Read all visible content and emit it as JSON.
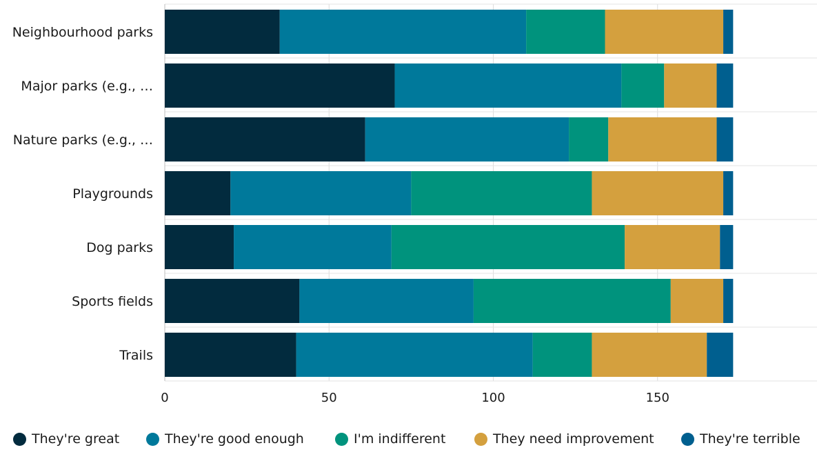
{
  "chart_data": {
    "type": "bar",
    "orientation": "horizontal",
    "stacked": true,
    "categories": [
      "Neighbourhood parks",
      "Major parks (e.g., …",
      "Nature parks (e.g., …",
      "Playgrounds",
      "Dog parks",
      "Sports fields",
      "Trails"
    ],
    "series": [
      {
        "name": "They're great",
        "color": "#022b3e",
        "values": [
          35,
          70,
          61,
          20,
          21,
          41,
          40
        ]
      },
      {
        "name": "They're good enough",
        "color": "#00799b",
        "values": [
          75,
          69,
          62,
          55,
          48,
          53,
          72
        ]
      },
      {
        "name": "I'm indifferent",
        "color": "#00937d",
        "values": [
          24,
          13,
          12,
          55,
          71,
          60,
          18
        ]
      },
      {
        "name": "They need improvement",
        "color": "#d4a03e",
        "values": [
          36,
          16,
          33,
          40,
          29,
          16,
          35
        ]
      },
      {
        "name": "They're terrible",
        "color": "#005f8f",
        "values": [
          3,
          5,
          5,
          3,
          4,
          3,
          8
        ]
      }
    ],
    "xlim": [
      0,
      200
    ],
    "xticks": [
      "0",
      "50",
      "100",
      "150"
    ],
    "grid": true,
    "legend_position": "bottom"
  }
}
